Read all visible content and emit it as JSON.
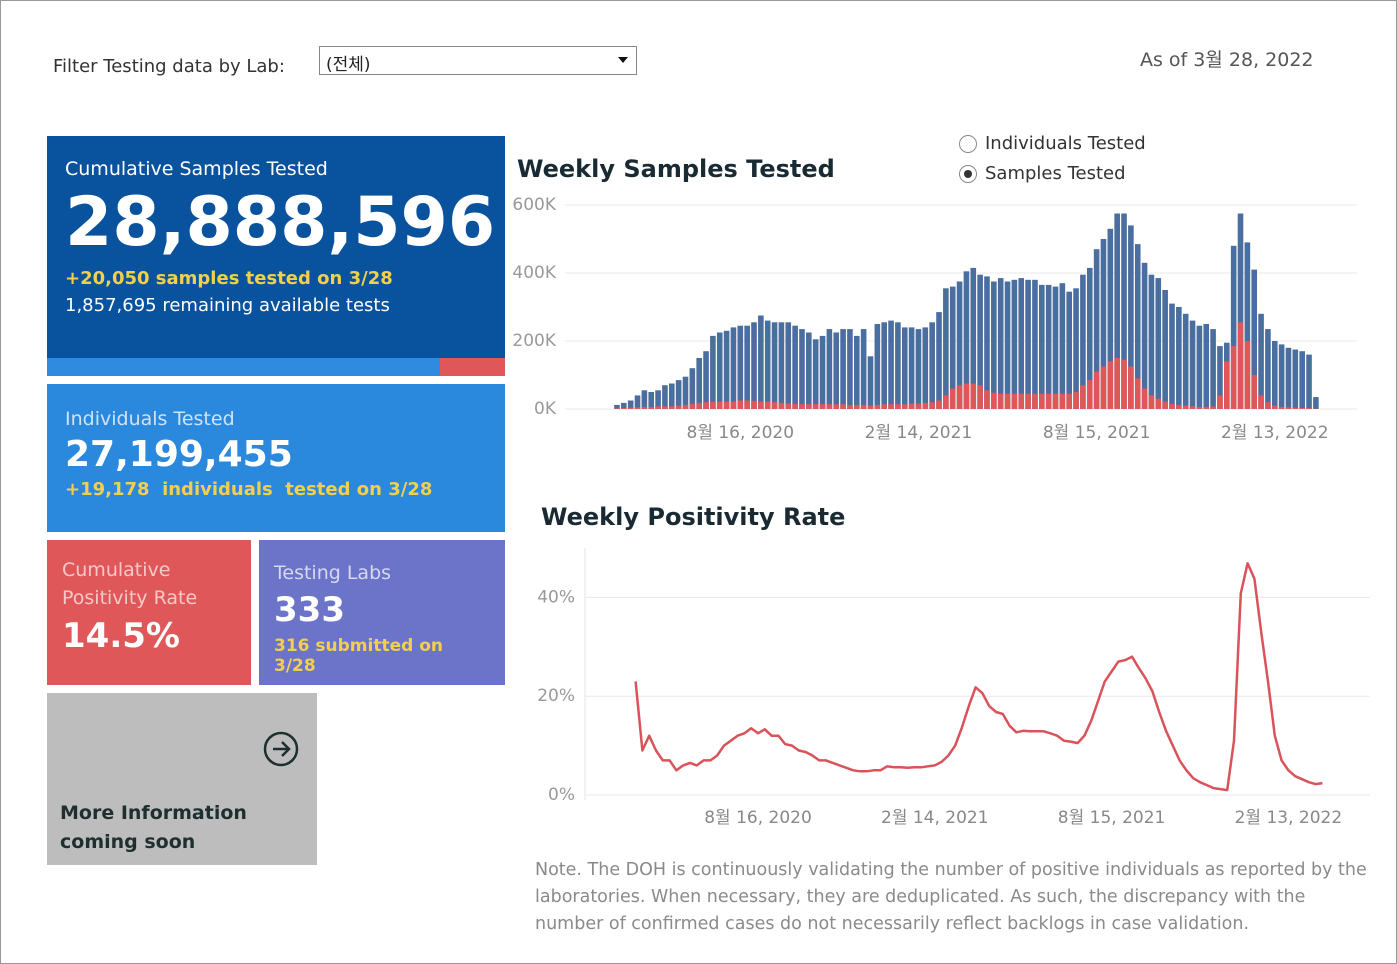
{
  "filter": {
    "label": "Filter Testing data by Lab:",
    "selected": "(전체)"
  },
  "as_of": "As of 3월 28, 2022",
  "cards": {
    "samples": {
      "title": "Cumulative Samples Tested",
      "value": "28,888,596",
      "today": "+20,050 samples tested on 3/28",
      "remaining": "1,857,695 remaining available tests"
    },
    "individuals": {
      "title": "Individuals Tested",
      "value": "27,199,455",
      "today": "+19,178  individuals  tested on 3/28"
    },
    "positivity": {
      "title": "Cumulative Positivity Rate",
      "value": "14.5%"
    },
    "labs": {
      "title": "Testing Labs",
      "value": "333",
      "today": "316 submitted on 3/28"
    },
    "more": "More Information coming soon"
  },
  "toggle": {
    "options": [
      "Individuals Tested",
      "Samples Tested"
    ],
    "selected": 1
  },
  "chart_data": [
    {
      "type": "bar",
      "title": "Weekly Samples Tested",
      "x": [
        "2020-04-12",
        "2020-04-19",
        "2020-04-26",
        "2020-05-03",
        "2020-05-10",
        "2020-05-17",
        "2020-05-24",
        "2020-05-31",
        "2020-06-07",
        "2020-06-14",
        "2020-06-21",
        "2020-06-28",
        "2020-07-05",
        "2020-07-12",
        "2020-07-19",
        "2020-07-26",
        "2020-08-02",
        "2020-08-09",
        "2020-08-16",
        "2020-08-23",
        "2020-08-30",
        "2020-09-06",
        "2020-09-13",
        "2020-09-20",
        "2020-09-27",
        "2020-10-04",
        "2020-10-11",
        "2020-10-18",
        "2020-10-25",
        "2020-11-01",
        "2020-11-08",
        "2020-11-15",
        "2020-11-22",
        "2020-11-29",
        "2020-12-06",
        "2020-12-13",
        "2020-12-20",
        "2020-12-27",
        "2021-01-03",
        "2021-01-10",
        "2021-01-17",
        "2021-01-24",
        "2021-01-31",
        "2021-02-07",
        "2021-02-14",
        "2021-02-21",
        "2021-02-28",
        "2021-03-07",
        "2021-03-14",
        "2021-03-21",
        "2021-03-28",
        "2021-04-04",
        "2021-04-11",
        "2021-04-18",
        "2021-04-25",
        "2021-05-02",
        "2021-05-09",
        "2021-05-16",
        "2021-05-23",
        "2021-05-30",
        "2021-06-06",
        "2021-06-13",
        "2021-06-20",
        "2021-06-27",
        "2021-07-04",
        "2021-07-11",
        "2021-07-18",
        "2021-07-25",
        "2021-08-01",
        "2021-08-08",
        "2021-08-15",
        "2021-08-22",
        "2021-08-29",
        "2021-09-05",
        "2021-09-12",
        "2021-09-19",
        "2021-09-26",
        "2021-10-03",
        "2021-10-10",
        "2021-10-17",
        "2021-10-24",
        "2021-10-31",
        "2021-11-07",
        "2021-11-14",
        "2021-11-21",
        "2021-11-28",
        "2021-12-05",
        "2021-12-12",
        "2021-12-19",
        "2021-12-26",
        "2022-01-02",
        "2022-01-09",
        "2022-01-16",
        "2022-01-23",
        "2022-01-30",
        "2022-02-06",
        "2022-02-13",
        "2022-02-20",
        "2022-02-27",
        "2022-03-06",
        "2022-03-13",
        "2022-03-20",
        "2022-03-27"
      ],
      "series": [
        {
          "color": "#4a6e9f",
          "values": [
            12000,
            18000,
            25000,
            40000,
            55000,
            50000,
            55000,
            70000,
            75000,
            85000,
            95000,
            120000,
            150000,
            170000,
            215000,
            225000,
            230000,
            240000,
            245000,
            245000,
            255000,
            275000,
            260000,
            255000,
            255000,
            255000,
            245000,
            235000,
            225000,
            205000,
            215000,
            235000,
            225000,
            235000,
            235000,
            215000,
            235000,
            155000,
            250000,
            255000,
            260000,
            255000,
            240000,
            240000,
            235000,
            240000,
            255000,
            285000,
            355000,
            360000,
            375000,
            405000,
            415000,
            395000,
            390000,
            375000,
            385000,
            375000,
            380000,
            385000,
            380000,
            380000,
            365000,
            365000,
            360000,
            370000,
            345000,
            355000,
            395000,
            415000,
            470000,
            500000,
            530000,
            575000,
            575000,
            540000,
            485000,
            430000,
            395000,
            385000,
            350000,
            310000,
            300000,
            280000,
            260000,
            245000,
            250000,
            235000,
            185000,
            195000,
            480000,
            575000,
            490000,
            410000,
            280000,
            235000,
            200000,
            190000,
            180000,
            175000,
            170000,
            160000,
            35000
          ]
        },
        {
          "color": "#e05759",
          "values": [
            2000,
            3000,
            4000,
            5000,
            6000,
            6000,
            8000,
            8000,
            8000,
            10000,
            12000,
            15000,
            18000,
            20000,
            22000,
            22000,
            22000,
            22000,
            25000,
            25000,
            24000,
            22000,
            22000,
            20000,
            18000,
            16000,
            15000,
            14000,
            14000,
            14000,
            14000,
            14000,
            14000,
            14000,
            12000,
            12000,
            12000,
            10000,
            12000,
            14000,
            14000,
            14000,
            14000,
            16000,
            16000,
            18000,
            20000,
            25000,
            40000,
            60000,
            70000,
            75000,
            75000,
            70000,
            55000,
            48000,
            45000,
            45000,
            45000,
            45000,
            45000,
            45000,
            45000,
            45000,
            45000,
            45000,
            45000,
            50000,
            70000,
            85000,
            110000,
            125000,
            140000,
            150000,
            145000,
            125000,
            90000,
            60000,
            40000,
            30000,
            22000,
            15000,
            12000,
            10000,
            8000,
            6000,
            6000,
            8000,
            40000,
            140000,
            185000,
            255000,
            200000,
            100000,
            40000,
            20000,
            10000,
            6000,
            5000,
            4000,
            3000,
            3000,
            1000
          ]
        }
      ],
      "xlim": [
        "2020-02-23",
        "2022-05-08"
      ],
      "xticks": [
        {
          "value": "2020-08-16",
          "label": "8월 16, 2020"
        },
        {
          "value": "2021-02-14",
          "label": "2월 14, 2021"
        },
        {
          "value": "2021-08-15",
          "label": "8월 15, 2021"
        },
        {
          "value": "2022-02-13",
          "label": "2월 13, 2022"
        }
      ],
      "ylim": [
        0,
        600000
      ],
      "yticks": [
        {
          "value": 0,
          "label": "0K"
        },
        {
          "value": 200000,
          "label": "200K"
        },
        {
          "value": 400000,
          "label": "400K"
        },
        {
          "value": 600000,
          "label": "600K"
        }
      ],
      "grid": true
    },
    {
      "type": "line",
      "title": "Weekly Positivity Rate",
      "x": [
        "2020-04-12",
        "2020-04-19",
        "2020-04-26",
        "2020-05-03",
        "2020-05-10",
        "2020-05-17",
        "2020-05-24",
        "2020-05-31",
        "2020-06-07",
        "2020-06-14",
        "2020-06-21",
        "2020-06-28",
        "2020-07-05",
        "2020-07-12",
        "2020-07-19",
        "2020-07-26",
        "2020-08-02",
        "2020-08-09",
        "2020-08-16",
        "2020-08-23",
        "2020-08-30",
        "2020-09-06",
        "2020-09-13",
        "2020-09-20",
        "2020-09-27",
        "2020-10-04",
        "2020-10-11",
        "2020-10-18",
        "2020-10-25",
        "2020-11-01",
        "2020-11-08",
        "2020-11-15",
        "2020-11-22",
        "2020-11-29",
        "2020-12-06",
        "2020-12-13",
        "2020-12-20",
        "2020-12-27",
        "2021-01-03",
        "2021-01-10",
        "2021-01-17",
        "2021-01-24",
        "2021-01-31",
        "2021-02-07",
        "2021-02-14",
        "2021-02-21",
        "2021-02-28",
        "2021-03-07",
        "2021-03-14",
        "2021-03-21",
        "2021-03-28",
        "2021-04-04",
        "2021-04-11",
        "2021-04-18",
        "2021-04-25",
        "2021-05-02",
        "2021-05-09",
        "2021-05-16",
        "2021-05-23",
        "2021-05-30",
        "2021-06-06",
        "2021-06-13",
        "2021-06-20",
        "2021-06-27",
        "2021-07-04",
        "2021-07-11",
        "2021-07-18",
        "2021-07-25",
        "2021-08-01",
        "2021-08-08",
        "2021-08-15",
        "2021-08-22",
        "2021-08-29",
        "2021-09-05",
        "2021-09-12",
        "2021-09-19",
        "2021-09-26",
        "2021-10-03",
        "2021-10-10",
        "2021-10-17",
        "2021-10-24",
        "2021-10-31",
        "2021-11-07",
        "2021-11-14",
        "2021-11-21",
        "2021-11-28",
        "2021-12-05",
        "2021-12-12",
        "2021-12-19",
        "2021-12-26",
        "2022-01-02",
        "2022-01-09",
        "2022-01-16",
        "2022-01-23",
        "2022-01-30",
        "2022-02-06",
        "2022-02-13",
        "2022-02-20",
        "2022-02-27",
        "2022-03-06",
        "2022-03-13",
        "2022-03-20"
      ],
      "series": [
        {
          "color": "#d9535a",
          "values": [
            23,
            9,
            12,
            9,
            7,
            7,
            5,
            6,
            6.5,
            6,
            7,
            7,
            8,
            10,
            11,
            12,
            12.5,
            13.5,
            12.5,
            13.3,
            12,
            12,
            10.3,
            10,
            9,
            8.7,
            8,
            7,
            7,
            6.5,
            6,
            5.5,
            5,
            4.8,
            4.8,
            5,
            5,
            5.8,
            5.6,
            5.6,
            5.5,
            5.6,
            5.6,
            5.8,
            6,
            6.7,
            8,
            10,
            13.7,
            18,
            21.8,
            20.6,
            18,
            16.8,
            16.4,
            14,
            12.7,
            13,
            12.9,
            12.9,
            12.9,
            12.5,
            12,
            11,
            10.8,
            10.5,
            12,
            15,
            19,
            23,
            25,
            27,
            27.3,
            28,
            25.7,
            23.6,
            21,
            16.8,
            13,
            10,
            7,
            5,
            3.4,
            2.6,
            2,
            1.4,
            1.2,
            1,
            11,
            40.8,
            46.9,
            43.8,
            33,
            23,
            12,
            7,
            5,
            3.8,
            3.2,
            2.6,
            2.2,
            2.4
          ]
        }
      ],
      "xlim": [
        "2020-02-23",
        "2022-05-08"
      ],
      "xticks": [
        {
          "value": "2020-08-16",
          "label": "8월 16, 2020"
        },
        {
          "value": "2021-02-14",
          "label": "2월 14, 2021"
        },
        {
          "value": "2021-08-15",
          "label": "8월 15, 2021"
        },
        {
          "value": "2022-02-13",
          "label": "2월 13, 2022"
        }
      ],
      "ylim": [
        0,
        50
      ],
      "yticks": [
        {
          "value": 0,
          "label": "0%"
        },
        {
          "value": 20,
          "label": "20%"
        },
        {
          "value": 40,
          "label": "40%"
        }
      ],
      "grid": true
    }
  ],
  "note": "Note. The DOH is continuously validating the number of positive individuals as reported by the laboratories. When necessary, they are deduplicated. As such, the discrepancy with the number of confirmed cases do not necessarily reflect backlogs in case validation."
}
